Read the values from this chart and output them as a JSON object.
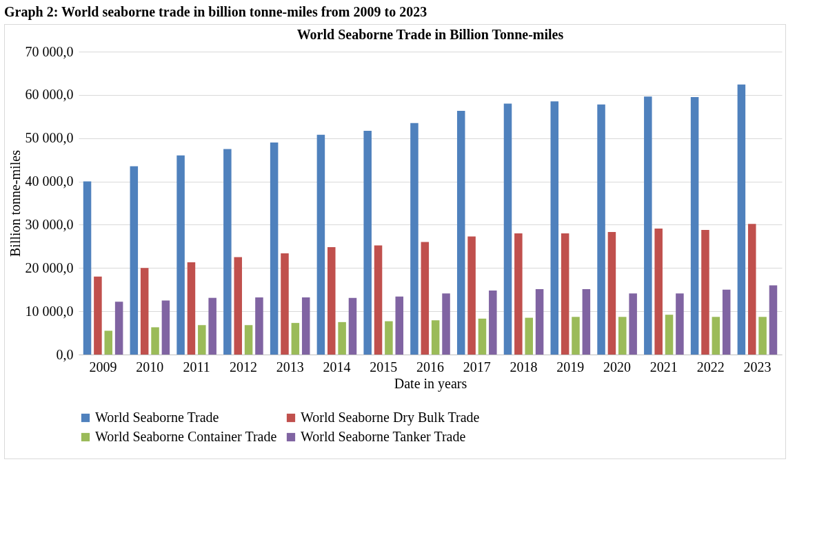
{
  "chart_data": {
    "type": "bar",
    "title": "World Seaborne Trade in Billion Tonne-miles",
    "xlabel": "Date in years",
    "ylabel": "Billion tonne-miles",
    "annotations": [
      "Graph 2: World seaborne trade in billion tonne-miles from 2009 to 2023"
    ],
    "categories": [
      "2009",
      "2010",
      "2011",
      "2012",
      "2013",
      "2014",
      "2015",
      "2016",
      "2017",
      "2018",
      "2019",
      "2020",
      "2021",
      "2022",
      "2023"
    ],
    "series": [
      {
        "name": "World Seaborne Trade",
        "color": "#4f81bd",
        "values": [
          40000,
          43500,
          46000,
          47500,
          49000,
          50800,
          51700,
          53500,
          56300,
          58000,
          58500,
          57800,
          59600,
          59500,
          62400
        ]
      },
      {
        "name": "World Seaborne Dry Bulk Trade",
        "color": "#c0504d",
        "values": [
          18000,
          20000,
          21300,
          22500,
          23400,
          24800,
          25200,
          26000,
          27300,
          28000,
          28000,
          28300,
          29100,
          28800,
          30200
        ]
      },
      {
        "name": "World Seaborne Container Trade",
        "color": "#9bbb59",
        "values": [
          5500,
          6300,
          6800,
          6800,
          7300,
          7500,
          7700,
          7900,
          8300,
          8500,
          8700,
          8700,
          9200,
          8700,
          8700
        ]
      },
      {
        "name": "World Seaborne Tanker Trade",
        "color": "#8064a2",
        "values": [
          12200,
          12500,
          13100,
          13200,
          13200,
          13100,
          13400,
          14100,
          14800,
          15100,
          15100,
          14100,
          14100,
          15000,
          16000
        ]
      }
    ],
    "ylim": [
      0,
      70000
    ],
    "yticks": [
      {
        "value": 0,
        "label": "0,0"
      },
      {
        "value": 10000,
        "label": "10 000,0"
      },
      {
        "value": 20000,
        "label": "20 000,0"
      },
      {
        "value": 30000,
        "label": "30 000,0"
      },
      {
        "value": 40000,
        "label": "40 000,0"
      },
      {
        "value": 50000,
        "label": "50 000,0"
      },
      {
        "value": 60000,
        "label": "60 000,0"
      },
      {
        "value": 70000,
        "label": "70 000,0"
      }
    ],
    "grid": "y",
    "legend": "bottom"
  }
}
